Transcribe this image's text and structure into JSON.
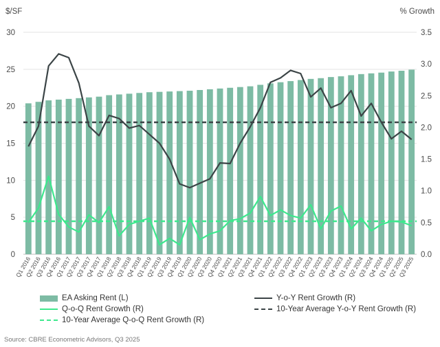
{
  "chart_data": {
    "type": "bar+line",
    "left_axis_label": "$/SF",
    "right_axis_label": "% Growth",
    "left_ylim": [
      0,
      30
    ],
    "left_ticks": [
      "0",
      "5",
      "10",
      "15",
      "20",
      "25",
      "30"
    ],
    "right_ylim": [
      0.0,
      3.5
    ],
    "right_ticks": [
      "0.0",
      "0.5",
      "1.0",
      "1.5",
      "2.0",
      "2.5",
      "3.0",
      "3.5"
    ],
    "categories": [
      "Q1 2016",
      "Q2 2016",
      "Q3 2016",
      "Q4 2016",
      "Q1 2017",
      "Q2 2017",
      "Q3 2017",
      "Q4 2017",
      "Q1 2018",
      "Q2 2018",
      "Q3 2018",
      "Q4 2018",
      "Q1 2019",
      "Q2 2019",
      "Q3 2019",
      "Q4 2019",
      "Q1 2020",
      "Q2 2020",
      "Q3 2020",
      "Q4 2020",
      "Q1 2021",
      "Q2 2021",
      "Q3 2021",
      "Q4 2021",
      "Q1 2022",
      "Q2 2022",
      "Q3 2022",
      "Q4 2022",
      "Q1 2023",
      "Q2 2023",
      "Q3 2023",
      "Q4 2023",
      "Q1 2024",
      "Q2 2024",
      "Q3 2024",
      "Q4 2024",
      "Q1 2025",
      "Q2 2025",
      "Q3 2025"
    ],
    "series": [
      {
        "name": "EA Asking Rent (L)",
        "type": "bar",
        "axis": "left",
        "color": "#7dbba4",
        "values": [
          20.4,
          20.6,
          20.8,
          20.9,
          21.0,
          21.1,
          21.2,
          21.3,
          21.5,
          21.6,
          21.7,
          21.8,
          21.9,
          21.95,
          22.0,
          22.05,
          22.1,
          22.2,
          22.3,
          22.4,
          22.5,
          22.6,
          22.7,
          22.9,
          23.1,
          23.25,
          23.4,
          23.55,
          23.7,
          23.8,
          23.95,
          24.05,
          24.2,
          24.35,
          24.45,
          24.55,
          24.7,
          24.8,
          24.95
        ]
      },
      {
        "name": "Y-o-Y Rent Growth (R)",
        "type": "line",
        "axis": "right",
        "color": "#3b4446",
        "values": [
          1.7,
          2.02,
          2.97,
          3.16,
          3.1,
          2.7,
          2.02,
          1.87,
          2.19,
          2.14,
          1.99,
          2.03,
          1.89,
          1.75,
          1.5,
          1.11,
          1.05,
          1.12,
          1.19,
          1.44,
          1.43,
          1.75,
          2.01,
          2.31,
          2.71,
          2.78,
          2.9,
          2.85,
          2.48,
          2.62,
          2.31,
          2.38,
          2.58,
          2.18,
          2.38,
          2.08,
          1.82,
          1.94,
          1.81
        ]
      },
      {
        "name": "Q-o-Q Rent Growth (R)",
        "type": "line",
        "axis": "right",
        "color": "#3de88d",
        "values": [
          0.5,
          0.73,
          1.23,
          0.63,
          0.43,
          0.35,
          0.62,
          0.5,
          0.75,
          0.29,
          0.47,
          0.52,
          0.57,
          0.15,
          0.25,
          0.15,
          0.58,
          0.23,
          0.32,
          0.37,
          0.53,
          0.56,
          0.65,
          0.91,
          0.61,
          0.7,
          0.61,
          0.57,
          0.78,
          0.4,
          0.68,
          0.76,
          0.4,
          0.57,
          0.37,
          0.47,
          0.52,
          0.51,
          0.45
        ]
      },
      {
        "name": "10-Year Average Y-o-Y Rent Growth (R)",
        "type": "hline",
        "axis": "right",
        "color": "#3b4446",
        "dashed": true,
        "value": 2.08
      },
      {
        "name": "10-Year Average Q-o-Q Rent Growth (R)",
        "type": "hline",
        "axis": "right",
        "color": "#3de88d",
        "dashed": true,
        "value": 0.52
      }
    ],
    "legend_position": "bottom",
    "grid": true
  },
  "source": "Source: CBRE Econometric Advisors, Q3 2025"
}
